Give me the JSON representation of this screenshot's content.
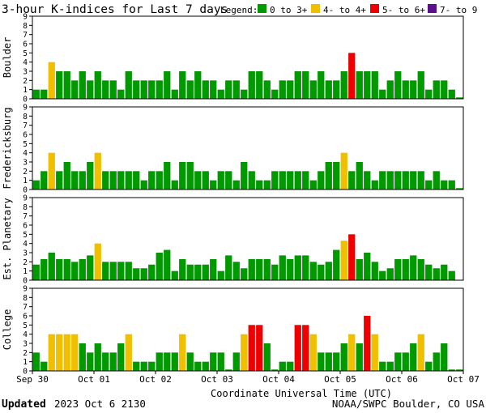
{
  "title": "3-hour K-indices for Last 7 days",
  "legend": {
    "label": "Legend:",
    "items": [
      {
        "label": "0 to 3+",
        "color": "#009900"
      },
      {
        "label": "4- to 4+",
        "color": "#f0c000"
      },
      {
        "label": "5- to 6+",
        "color": "#ee0000"
      },
      {
        "label": "7- to 9",
        "color": "#5a108a"
      }
    ]
  },
  "footer": {
    "updated_label": "Updated",
    "updated_value": "2023 Oct  6 2130",
    "source": "NOAA/SWPC Boulder, CO USA"
  },
  "chart_data": {
    "type": "bar",
    "xlabel": "Coordinate Universal Time (UTC)",
    "x_tick_labels": [
      "Sep 30",
      "Oct 01",
      "Oct 02",
      "Oct 03",
      "Oct 04",
      "Oct 05",
      "Oct 06",
      "Oct 07"
    ],
    "ylim": [
      0,
      9
    ],
    "y_ticks": [
      "0",
      "1",
      "2",
      "3",
      "4",
      "5",
      "6",
      "7",
      "8",
      "9"
    ],
    "grid": false,
    "legend_position": "top-right",
    "color_thresholds": {
      "green_below": 3.67,
      "yellow_below": 4.67,
      "red_below": 6.67
    },
    "panels": [
      {
        "name": "Boulder",
        "values": [
          1,
          1,
          4,
          3,
          3,
          2,
          3,
          2,
          3,
          2,
          2,
          1,
          3,
          2,
          2,
          2,
          2,
          3,
          1,
          3,
          2,
          3,
          2,
          2,
          1,
          2,
          2,
          1,
          3,
          3,
          2,
          1,
          2,
          2,
          3,
          3,
          2,
          3,
          2,
          2,
          3,
          5,
          3,
          3,
          3,
          1,
          2,
          3,
          2,
          2,
          3,
          1,
          2,
          2,
          1,
          0.15
        ]
      },
      {
        "name": "Fredericksburg",
        "values": [
          1,
          2,
          4,
          2,
          3,
          2,
          2,
          3,
          4,
          2,
          2,
          2,
          2,
          2,
          1,
          2,
          2,
          3,
          1,
          3,
          3,
          2,
          2,
          1,
          2,
          2,
          1,
          3,
          2,
          1,
          1,
          2,
          2,
          2,
          2,
          2,
          1,
          2,
          3,
          3,
          4,
          2,
          3,
          2,
          1,
          2,
          2,
          2,
          2,
          2,
          2,
          1,
          2,
          1,
          1,
          0.15
        ]
      },
      {
        "name": "Est. Planetary",
        "values": [
          1.7,
          2.3,
          3,
          2.3,
          2.3,
          2,
          2.3,
          2.7,
          4,
          2,
          2,
          2,
          2,
          1.3,
          1.3,
          1.7,
          3,
          3.3,
          1,
          2.3,
          1.7,
          1.7,
          1.7,
          2.3,
          1,
          2.7,
          2,
          1.3,
          2.3,
          2.3,
          2.3,
          1.7,
          2.7,
          2.3,
          2.7,
          2.7,
          2,
          1.7,
          2,
          3.3,
          4.3,
          5,
          2.3,
          3,
          2,
          1,
          1.3,
          2.3,
          2.3,
          2.7,
          2.3,
          1.7,
          1.3,
          1.7,
          1,
          0
        ]
      },
      {
        "name": "College",
        "values": [
          2,
          1,
          4,
          4,
          4,
          4,
          3,
          2,
          3,
          2,
          2,
          3,
          4,
          1,
          1,
          1,
          2,
          2,
          2,
          4,
          2,
          1,
          1,
          2,
          2,
          0.15,
          2,
          4,
          5,
          5,
          3,
          0.15,
          1,
          1,
          5,
          5,
          4,
          2,
          2,
          2,
          3,
          4,
          3,
          6,
          4,
          1,
          1,
          2,
          2,
          3,
          4,
          1,
          2,
          3,
          0.15,
          0.15
        ]
      }
    ]
  }
}
